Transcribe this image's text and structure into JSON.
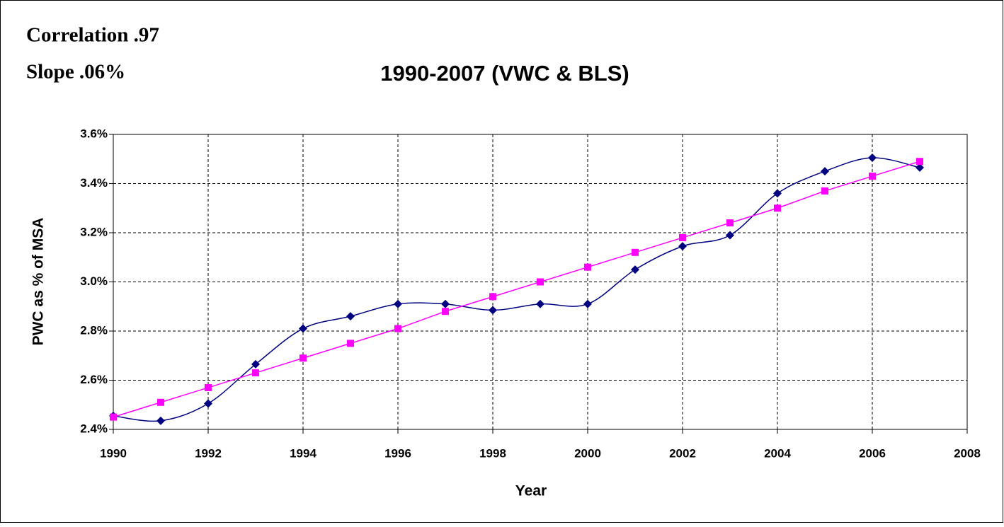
{
  "chart_data": {
    "type": "line",
    "title": "1990-2007 (VWC & BLS)",
    "annotations": [
      "Correlation .97",
      "Slope .06%"
    ],
    "x_label": "Year",
    "y_label": "PWC as % of MSA",
    "x": [
      1990,
      1991,
      1992,
      1993,
      1994,
      1995,
      1996,
      1997,
      1998,
      1999,
      2000,
      2001,
      2002,
      2003,
      2004,
      2005,
      2006,
      2007
    ],
    "series": [
      {
        "color": "#000080",
        "marker": "diamond",
        "smooth": true,
        "values": [
          2.455,
          2.435,
          2.505,
          2.665,
          2.81,
          2.86,
          2.91,
          2.91,
          2.885,
          2.91,
          2.91,
          3.05,
          3.145,
          3.19,
          3.36,
          3.45,
          3.505,
          3.465
        ]
      },
      {
        "color": "#ff00ff",
        "marker": "square",
        "smooth": false,
        "values": [
          2.45,
          2.51,
          2.57,
          2.63,
          2.69,
          2.75,
          2.81,
          2.88,
          2.94,
          3.0,
          3.06,
          3.12,
          3.18,
          3.24,
          3.3,
          3.37,
          3.43,
          3.49
        ]
      }
    ],
    "xlim": [
      1990,
      2008
    ],
    "xticks": [
      1990,
      1992,
      1994,
      1996,
      1998,
      2000,
      2002,
      2004,
      2006,
      2008
    ],
    "ylim": [
      2.4,
      3.6
    ],
    "yticks": [
      {
        "value": 2.4,
        "label": "2.4%"
      },
      {
        "value": 2.6,
        "label": "2.6%"
      },
      {
        "value": 2.8,
        "label": "2.8%"
      },
      {
        "value": 3.0,
        "label": "3.0%"
      },
      {
        "value": 3.2,
        "label": "3.2%"
      },
      {
        "value": 3.4,
        "label": "3.4%"
      },
      {
        "value": 3.6,
        "label": "3.6%"
      }
    ],
    "grid": true
  }
}
